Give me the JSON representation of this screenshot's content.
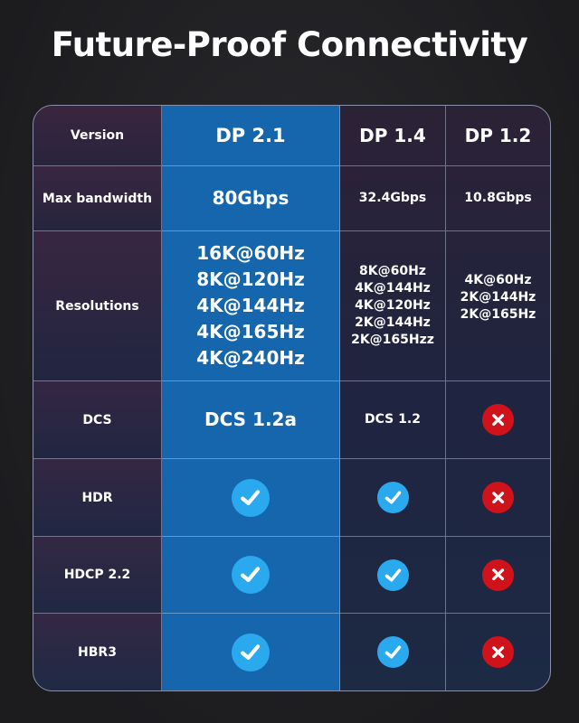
{
  "title": "Future-Proof Connectivity",
  "colors": {
    "dp21_column": "#1566ad",
    "check": "#2ba9ef",
    "cross": "#d0121b"
  },
  "rows": [
    {
      "label": "Version",
      "cells": [
        "DP 2.1",
        "DP 1.4",
        "DP 1.2"
      ]
    },
    {
      "label": "Max bandwidth",
      "cells": [
        "80Gbps",
        "32.4Gbps",
        "10.8Gbps"
      ]
    },
    {
      "label": "Resolutions",
      "cells": [
        "16K@60Hz\n8K@120Hz\n4K@144Hz\n4K@165Hz\n4K@240Hz",
        "8K@60Hz\n4K@144Hz\n4K@120Hz\n2K@144Hz\n2K@165Hzz",
        "4K@60Hz\n2K@144Hz\n2K@165Hz\n\n"
      ]
    },
    {
      "label": "DCS",
      "cells": [
        "DCS 1.2a",
        "DCS 1.2",
        "cross-icon"
      ]
    },
    {
      "label": "HDR",
      "cells": [
        "check-icon",
        "check-icon",
        "cross-icon"
      ]
    },
    {
      "label": "HDCP 2.2",
      "cells": [
        "check-icon",
        "check-icon",
        "cross-icon"
      ]
    },
    {
      "label": "HBR3",
      "cells": [
        "check-icon",
        "check-icon",
        "cross-icon"
      ]
    }
  ]
}
